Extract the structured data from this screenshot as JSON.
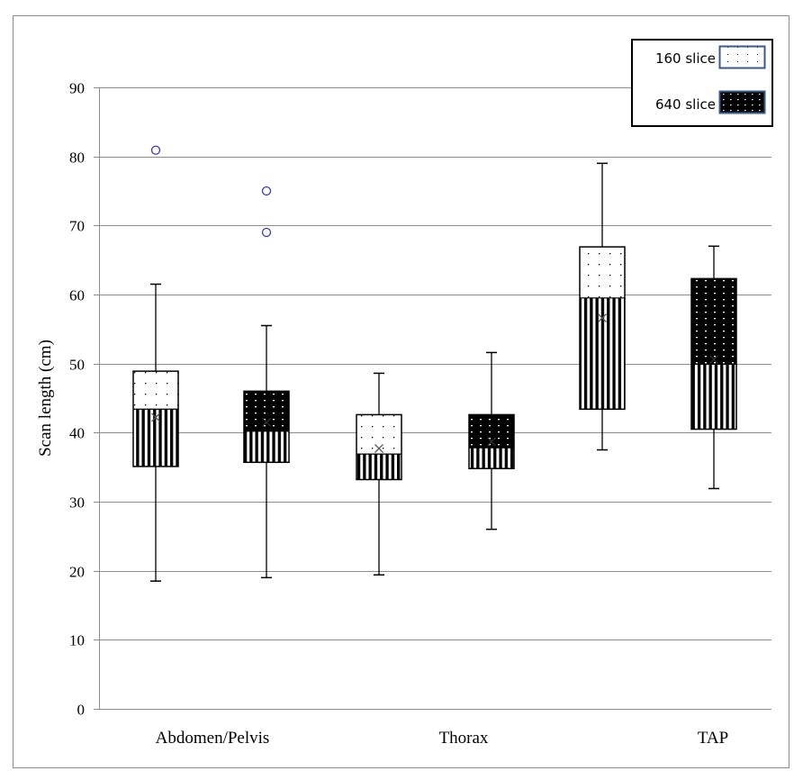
{
  "chart_data": {
    "type": "boxplot",
    "title": "",
    "xlabel": "",
    "ylabel": "Scan length (cm)",
    "ylim": [
      0,
      90
    ],
    "yticks": [
      0,
      10,
      20,
      30,
      40,
      50,
      60,
      70,
      80,
      90
    ],
    "grid": true,
    "legend_position": "top-right",
    "categories": [
      "Abdomen/Pelvis",
      "Thorax",
      "TAP"
    ],
    "series": [
      {
        "name": "160 slice",
        "pattern": "light-dotted",
        "boxes": [
          {
            "category": "Abdomen/Pelvis",
            "min": 18.5,
            "q1": 35.1,
            "median": 43.4,
            "q3": 48.9,
            "max": 61.5,
            "mean": 42.2,
            "outliers": [
              80.9
            ]
          },
          {
            "category": "Thorax",
            "min": 19.4,
            "q1": 33.2,
            "median": 36.9,
            "q3": 42.6,
            "max": 48.6,
            "mean": 37.7,
            "outliers": []
          },
          {
            "category": "TAP",
            "min": 37.5,
            "q1": 43.4,
            "median": 59.5,
            "q3": 66.9,
            "max": 79.0,
            "mean": 56.6,
            "outliers": []
          }
        ]
      },
      {
        "name": "640 slice",
        "pattern": "dark-dotted",
        "boxes": [
          {
            "category": "Abdomen/Pelvis",
            "min": 19.0,
            "q1": 35.7,
            "median": 40.2,
            "q3": 46.0,
            "max": 55.5,
            "mean": 41.5,
            "outliers": [
              75.0,
              69.0
            ]
          },
          {
            "category": "Thorax",
            "min": 26.0,
            "q1": 34.8,
            "median": 37.8,
            "q3": 42.6,
            "max": 51.6,
            "mean": 38.7,
            "outliers": []
          },
          {
            "category": "TAP",
            "min": 31.9,
            "q1": 40.5,
            "median": 49.9,
            "q3": 62.3,
            "max": 67.0,
            "mean": 50.6,
            "outliers": []
          }
        ]
      }
    ]
  },
  "colors": {
    "gridline": "#8c8c8c",
    "frame": "#8c8c8c",
    "outlier": "#3b3bb8",
    "legend_swatch_border": "#3a5a8a",
    "box_border": "#000000"
  }
}
